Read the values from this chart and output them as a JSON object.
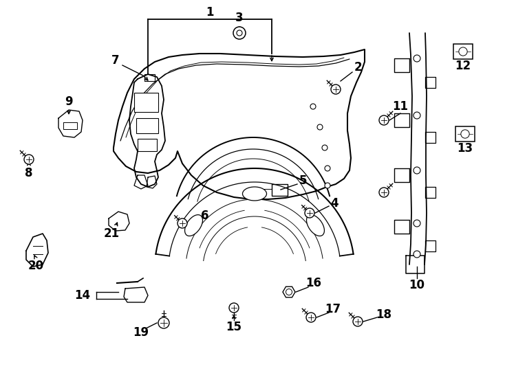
{
  "bg_color": "#ffffff",
  "line_color": "#000000",
  "fig_width": 7.34,
  "fig_height": 5.4,
  "dpi": 100
}
